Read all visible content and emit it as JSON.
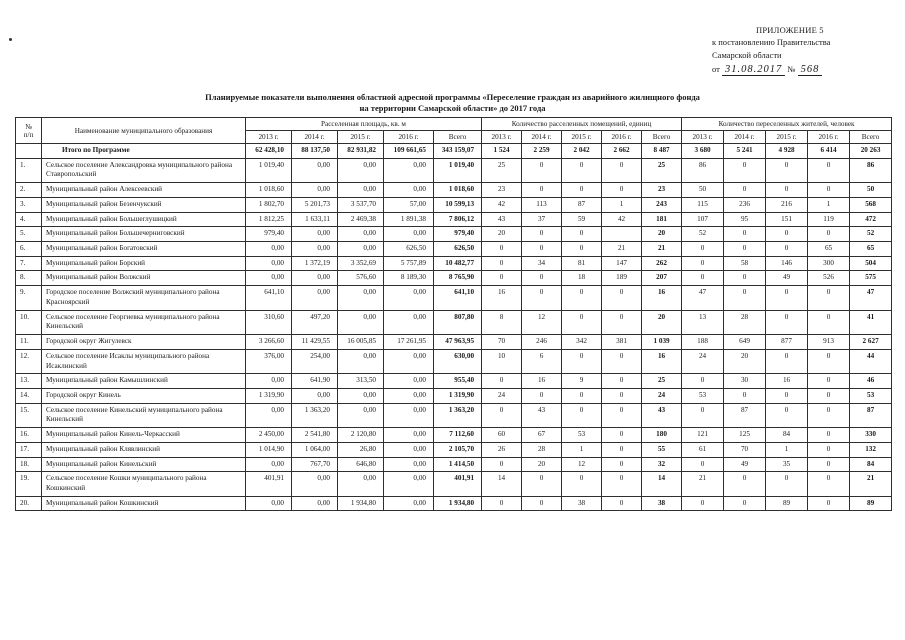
{
  "corner": {
    "appendix": "ПРИЛОЖЕНИЕ 5",
    "line2": "к постановлению Правительства",
    "line3": "Самарской области",
    "date_label": "от",
    "date_value": "31.08.2017",
    "number_label": "№",
    "number_value": "568"
  },
  "title": {
    "line1": "Планируемые показатели выполнения областной адресной программы «Переселение граждан из аварийного жилищного фонда",
    "line2": "на территории Самарской области» до 2017 года"
  },
  "table": {
    "col_num": "№\nп/п",
    "col_name": "Наименование муниципального образования",
    "groups": [
      "Расселенная площадь, кв. м",
      "Количество расселенных помещений, единиц",
      "Количество переселенных жителей, человек"
    ],
    "years": [
      "2013 г.",
      "2014 г.",
      "2015 г.",
      "2016 г.",
      "Всего"
    ],
    "total_row": {
      "name": "Итого по Программе",
      "cells": [
        "62 428,10",
        "88 137,50",
        "82 931,82",
        "109 661,65",
        "343 159,07",
        "1 524",
        "2 259",
        "2 042",
        "2 662",
        "8 487",
        "3 680",
        "5 241",
        "4 928",
        "6 414",
        "20 263"
      ]
    },
    "rows": [
      {
        "n": "1.",
        "name": "Сельское поселение Александровка муниципального района Ставропольский",
        "cells": [
          "1 019,40",
          "0,00",
          "0,00",
          "0,00",
          "1 019,40",
          "25",
          "0",
          "0",
          "0",
          "25",
          "86",
          "0",
          "0",
          "0",
          "86"
        ]
      },
      {
        "n": "2.",
        "name": "Муниципальный район Алексеевский",
        "cells": [
          "1 018,60",
          "0,00",
          "0,00",
          "0,00",
          "1 018,60",
          "23",
          "0",
          "0",
          "0",
          "23",
          "50",
          "0",
          "0",
          "0",
          "50"
        ]
      },
      {
        "n": "3.",
        "name": "Муниципальный район Безенчукский",
        "cells": [
          "1 802,70",
          "5 201,73",
          "3 537,70",
          "57,00",
          "10 599,13",
          "42",
          "113",
          "87",
          "1",
          "243",
          "115",
          "236",
          "216",
          "1",
          "568"
        ]
      },
      {
        "n": "4.",
        "name": "Муниципальный район Большеглушицкий",
        "cells": [
          "1 812,25",
          "1 633,11",
          "2 469,38",
          "1 891,38",
          "7 806,12",
          "43",
          "37",
          "59",
          "42",
          "181",
          "107",
          "95",
          "151",
          "119",
          "472"
        ]
      },
      {
        "n": "5.",
        "name": "Муниципальный район Большечерниговский",
        "cells": [
          "979,40",
          "0,00",
          "0,00",
          "0,00",
          "979,40",
          "20",
          "0",
          "0",
          "",
          "20",
          "52",
          "0",
          "0",
          "0",
          "52"
        ]
      },
      {
        "n": "6.",
        "name": "Муниципальный район Богатовский",
        "cells": [
          "0,00",
          "0,00",
          "0,00",
          "626,50",
          "626,50",
          "0",
          "0",
          "0",
          "21",
          "21",
          "0",
          "0",
          "0",
          "65",
          "65"
        ]
      },
      {
        "n": "7.",
        "name": "Муниципальный район Борский",
        "cells": [
          "0,00",
          "1 372,19",
          "3 352,69",
          "5 757,89",
          "10 482,77",
          "0",
          "34",
          "81",
          "147",
          "262",
          "0",
          "58",
          "146",
          "300",
          "504"
        ]
      },
      {
        "n": "8.",
        "name": "Муниципальный район Волжский",
        "cells": [
          "0,00",
          "0,00",
          "576,60",
          "8 189,30",
          "8 765,90",
          "0",
          "0",
          "18",
          "189",
          "207",
          "0",
          "0",
          "49",
          "526",
          "575"
        ]
      },
      {
        "n": "9.",
        "name": "Городское поселение Волжский муниципального района Красноярский",
        "cells": [
          "641,10",
          "0,00",
          "0,00",
          "0,00",
          "641,10",
          "16",
          "0",
          "0",
          "0",
          "16",
          "47",
          "0",
          "0",
          "0",
          "47"
        ]
      },
      {
        "n": "10.",
        "name": "Сельское поселение Георгиевка муниципального района Кинельский",
        "cells": [
          "310,60",
          "497,20",
          "0,00",
          "0,00",
          "807,80",
          "8",
          "12",
          "0",
          "0",
          "20",
          "13",
          "28",
          "0",
          "0",
          "41"
        ]
      },
      {
        "n": "11.",
        "name": "Городской округ Жигулевск",
        "cells": [
          "3 266,60",
          "11 429,55",
          "16 005,85",
          "17 261,95",
          "47 963,95",
          "70",
          "246",
          "342",
          "381",
          "1 039",
          "188",
          "649",
          "877",
          "913",
          "2 627"
        ]
      },
      {
        "n": "12.",
        "name": "Сельское поселение Исаклы муниципального района Исаклинский",
        "cells": [
          "376,00",
          "254,00",
          "0,00",
          "0,00",
          "630,00",
          "10",
          "6",
          "0",
          "0",
          "16",
          "24",
          "20",
          "0",
          "0",
          "44"
        ]
      },
      {
        "n": "13.",
        "name": "Муниципальный район Камышлинский",
        "cells": [
          "0,00",
          "641,90",
          "313,50",
          "0,00",
          "955,40",
          "0",
          "16",
          "9",
          "0",
          "25",
          "0",
          "30",
          "16",
          "0",
          "46"
        ]
      },
      {
        "n": "14.",
        "name": "Городской округ Кинель",
        "cells": [
          "1 319,90",
          "0,00",
          "0,00",
          "0,00",
          "1 319,90",
          "24",
          "0",
          "0",
          "0",
          "24",
          "53",
          "0",
          "0",
          "0",
          "53"
        ]
      },
      {
        "n": "15.",
        "name": "Сельское поселение Кинельский муниципального района Кинельский",
        "cells": [
          "0,00",
          "1 363,20",
          "0,00",
          "0,00",
          "1 363,20",
          "0",
          "43",
          "0",
          "0",
          "43",
          "0",
          "87",
          "0",
          "0",
          "87"
        ]
      },
      {
        "n": "16.",
        "name": "Муниципальный район Кинель-Черкасский",
        "cells": [
          "2 450,00",
          "2 541,80",
          "2 120,80",
          "0,00",
          "7 112,60",
          "60",
          "67",
          "53",
          "0",
          "180",
          "121",
          "125",
          "84",
          "0",
          "330"
        ]
      },
      {
        "n": "17.",
        "name": "Муниципальный район Клявлинский",
        "cells": [
          "1 014,90",
          "1 064,00",
          "26,80",
          "0,00",
          "2 105,70",
          "26",
          "28",
          "1",
          "0",
          "55",
          "61",
          "70",
          "1",
          "0",
          "132"
        ]
      },
      {
        "n": "18.",
        "name": "Муниципальный район Кинельский",
        "cells": [
          "0,00",
          "767,70",
          "646,80",
          "0,00",
          "1 414,50",
          "0",
          "20",
          "12",
          "0",
          "32",
          "0",
          "49",
          "35",
          "0",
          "84"
        ]
      },
      {
        "n": "19.",
        "name": "Сельское поселение Кошки муниципального района Кошкинский",
        "cells": [
          "401,91",
          "0,00",
          "0,00",
          "0,00",
          "401,91",
          "14",
          "0",
          "0",
          "0",
          "14",
          "21",
          "0",
          "0",
          "0",
          "21"
        ]
      },
      {
        "n": "20.",
        "name": "Муниципальный район Кошкинский",
        "cells": [
          "0,00",
          "0,00",
          "1 934,80",
          "0,00",
          "1 934,80",
          "0",
          "0",
          "38",
          "0",
          "38",
          "0",
          "0",
          "89",
          "0",
          "89"
        ]
      }
    ]
  }
}
